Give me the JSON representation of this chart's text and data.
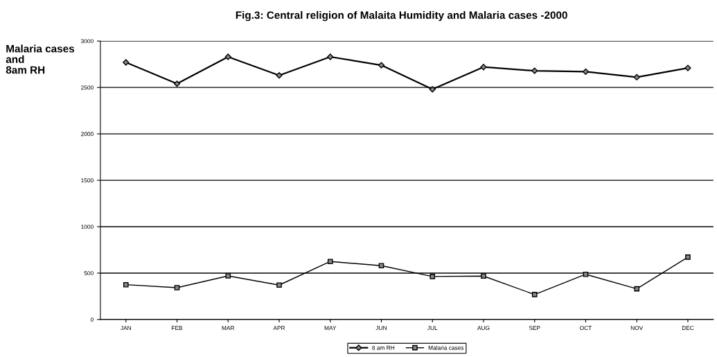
{
  "chart_data": {
    "type": "line",
    "title": "Fig.3: Central religion of Malaita Humidity and Malaria cases -2000",
    "ylabel": "Malaria cases\nand\n8am RH",
    "categories": [
      "JAN",
      "FEB",
      "MAR",
      "APR",
      "MAY",
      "JUN",
      "JUL",
      "AUG",
      "SEP",
      "OCT",
      "NOV",
      "DEC"
    ],
    "series": [
      {
        "name": "8 am RH",
        "color": "#000000",
        "marker": "diamond",
        "values": [
          2770,
          2540,
          2830,
          2630,
          2830,
          2740,
          2480,
          2720,
          2680,
          2670,
          2610,
          2710
        ]
      },
      {
        "name": "Malaria cases",
        "color": "#000000",
        "marker": "square",
        "values": [
          375,
          343,
          470,
          371,
          625,
          580,
          463,
          468,
          269,
          487,
          331,
          672
        ]
      }
    ],
    "ylim": [
      0,
      3000
    ],
    "yticks": [
      0,
      500,
      1000,
      1500,
      2000,
      2500,
      3000
    ],
    "grid": "y",
    "legend": "bottom",
    "line_style": "solid"
  }
}
